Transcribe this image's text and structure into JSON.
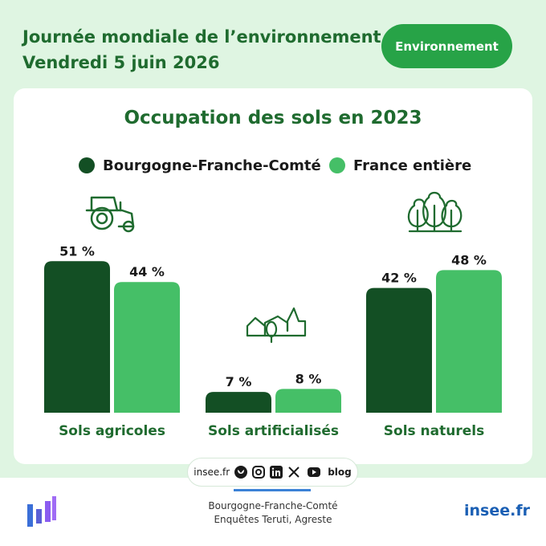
{
  "header": {
    "line1": "Journée mondiale de l’environnement",
    "line2": "Vendredi 5 juin 2026",
    "badge": "Environnement"
  },
  "colors": {
    "dark_green": "#134f24",
    "light_green": "#45bf67",
    "title_green": "#1f6b2f",
    "badge_green": "#27a347",
    "background": "#dff5e2"
  },
  "icons": [
    "tractor-icon",
    "buildings-icon",
    "trees-icon"
  ],
  "chart_data": {
    "type": "bar",
    "title": "Occupation des sols en 2023",
    "categories": [
      "Sols agricoles",
      "Sols artificialisés",
      "Sols naturels"
    ],
    "series": [
      {
        "name": "Bourgogne-Franche-Comté",
        "values": [
          51,
          7,
          42
        ],
        "labels": [
          "51 %",
          "7 %",
          "42 %"
        ],
        "color": "#134f24"
      },
      {
        "name": "France entière",
        "values": [
          44,
          8,
          48
        ],
        "labels": [
          "44 %",
          "8 %",
          "48 %"
        ],
        "color": "#45bf67"
      }
    ],
    "ylim": [
      0,
      60
    ],
    "grid": false,
    "legend": "top-center"
  },
  "footer": {
    "site": "insee.fr",
    "blog": "blog",
    "source_line1": "Bourgogne-Franche-Comté",
    "source_line2": "Enquêtes Teruti, Agreste",
    "brand": "insee.fr"
  }
}
